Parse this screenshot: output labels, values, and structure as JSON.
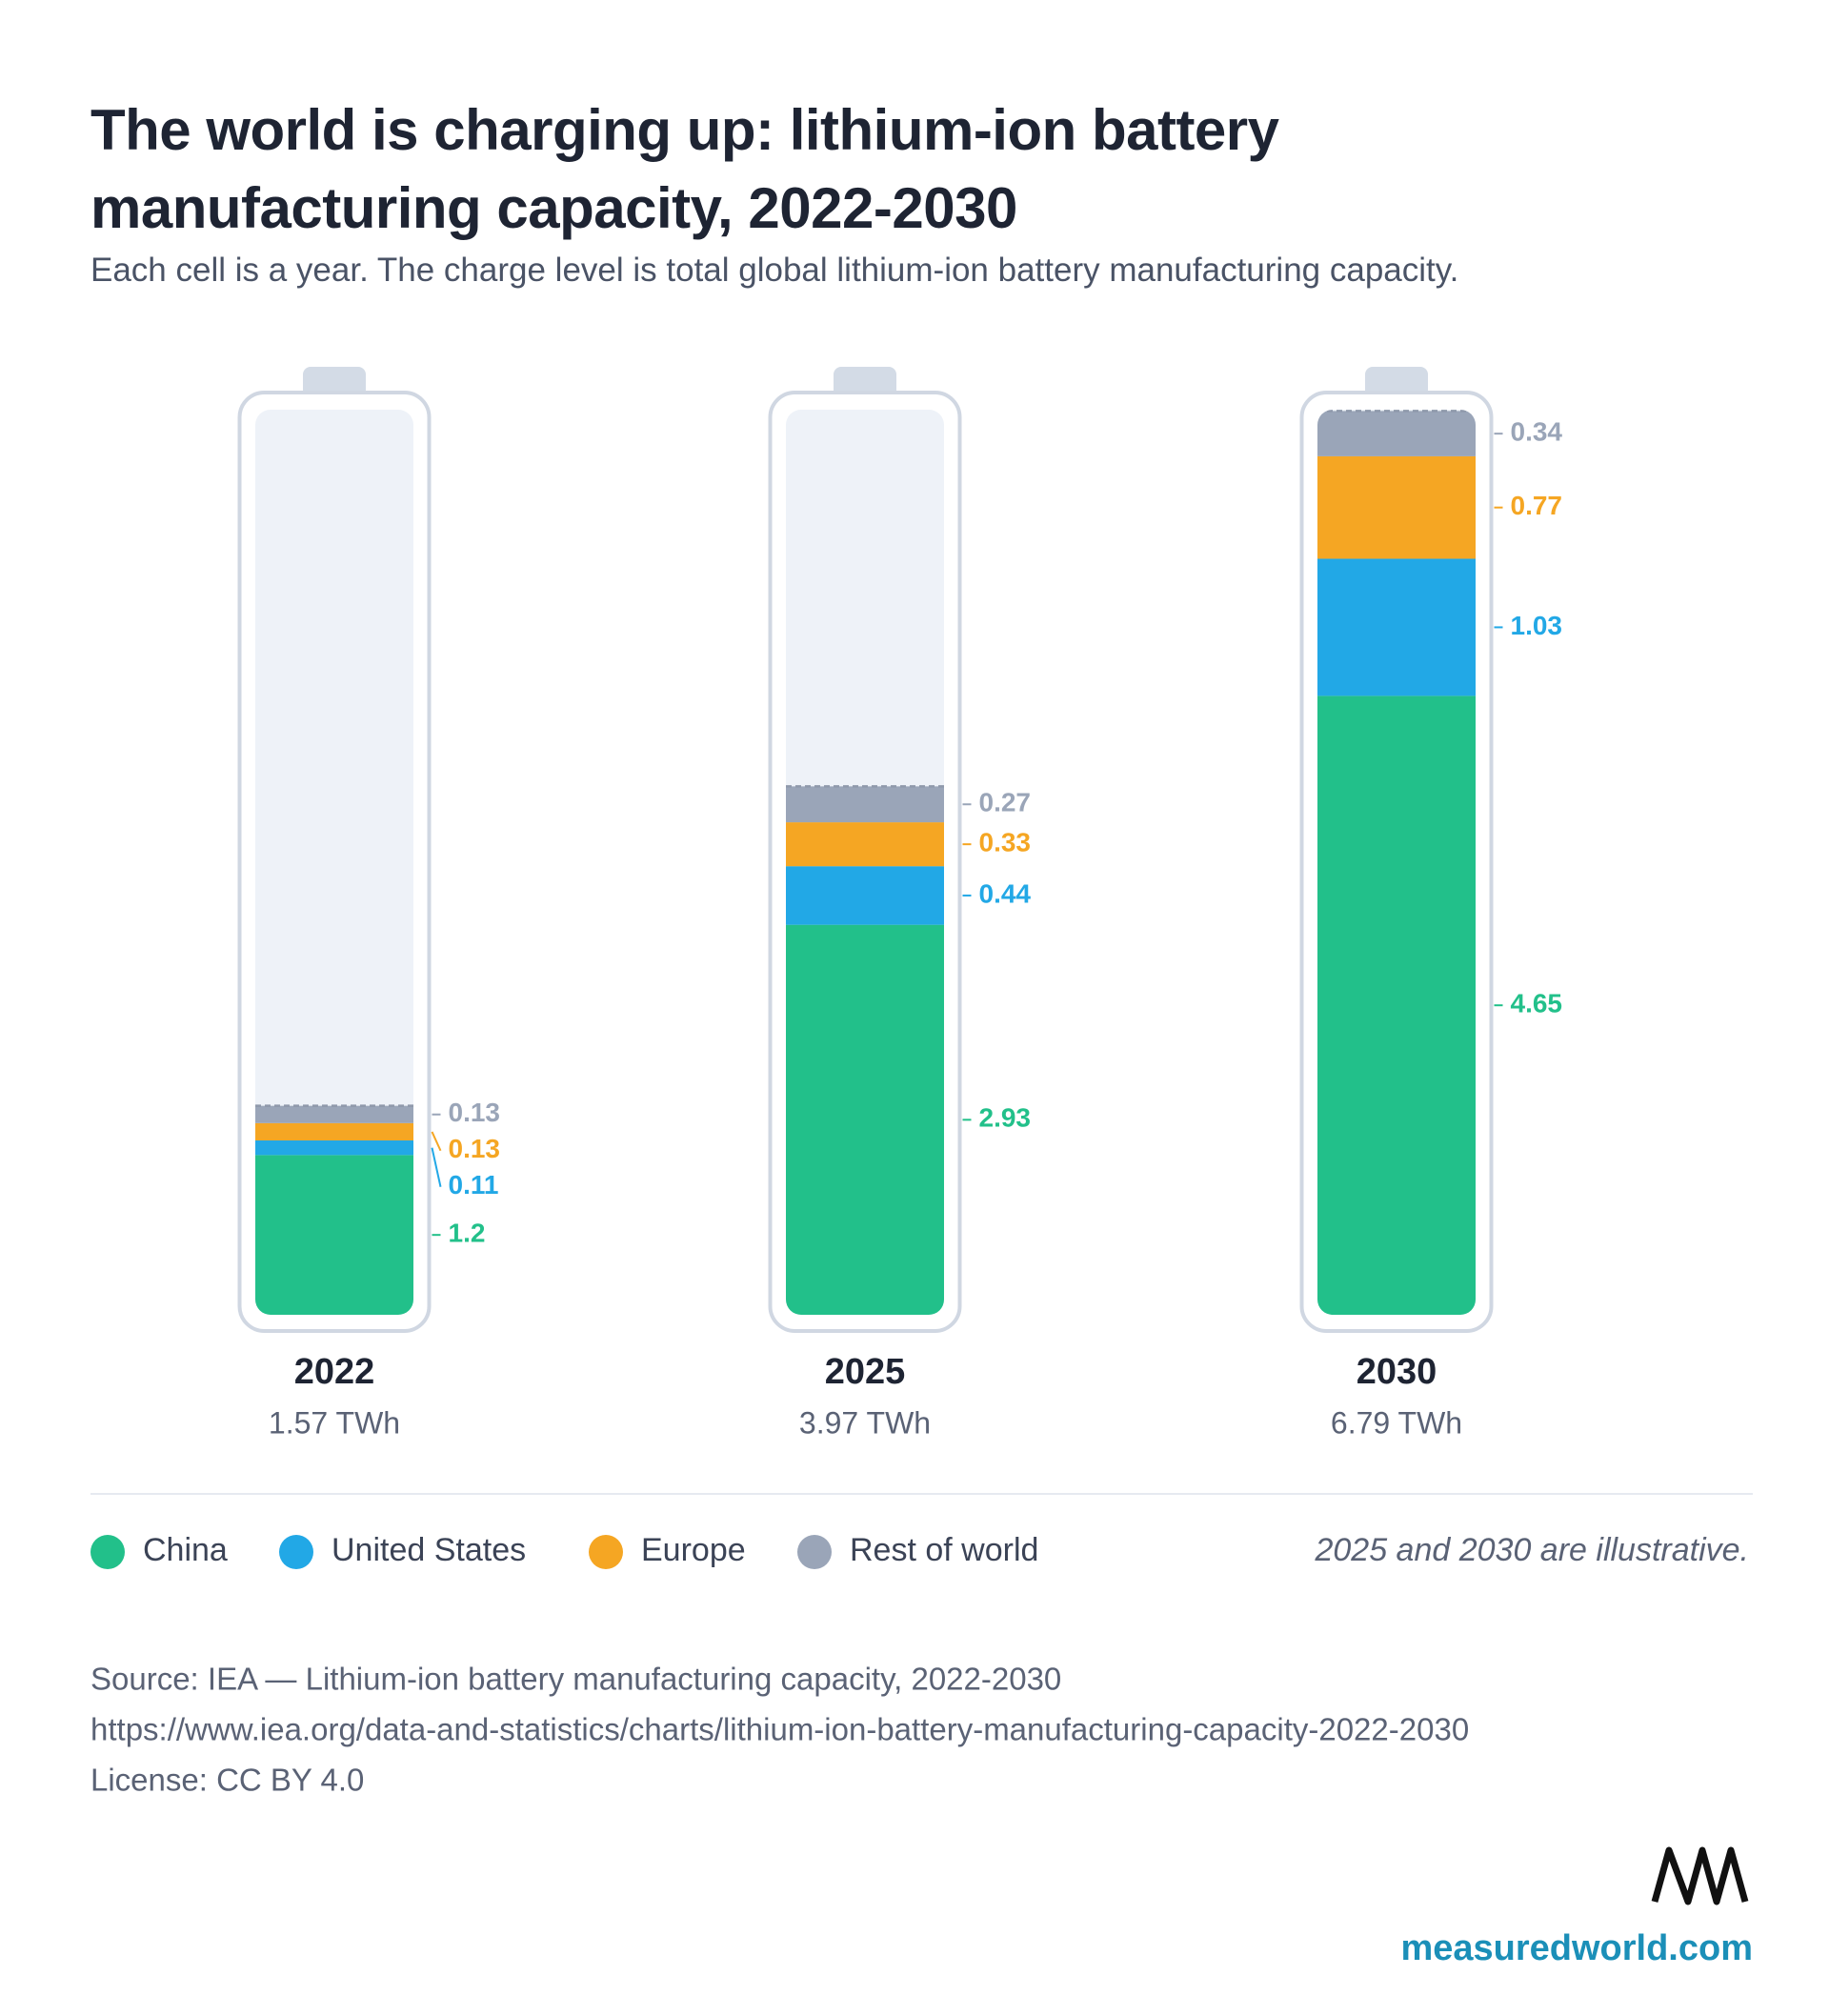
{
  "chart_data": {
    "type": "bar",
    "stacked": true,
    "title": "The world is charging up: lithium-ion battery manufacturing capacity, 2022-2030",
    "subtitle": "Each cell is a year. The charge level is total global lithium-ion battery manufacturing capacity.",
    "categories": [
      "2022",
      "2025",
      "2030"
    ],
    "series": [
      {
        "name": "China",
        "color": "#22c08a",
        "values": [
          1.2,
          2.93,
          4.65
        ]
      },
      {
        "name": "United States",
        "color": "#22a8e6",
        "values": [
          0.11,
          0.44,
          1.03
        ]
      },
      {
        "name": "Europe",
        "color": "#f5a623",
        "values": [
          0.13,
          0.33,
          0.77
        ]
      },
      {
        "name": "Rest of world",
        "color": "#9aa5b8",
        "values": [
          0.13,
          0.27,
          0.34
        ]
      }
    ],
    "totals": {
      "values": [
        1.57,
        3.97,
        6.79
      ],
      "value_labels": [
        "1.57 TWh",
        "3.97 TWh",
        "6.79 TWh"
      ]
    },
    "ylim": [
      0,
      6.8
    ],
    "note": "2025 and 2030 are illustrative.",
    "source": "Source: IEA — Lithium-ion battery manufacturing capacity, 2022-2030",
    "url": "https://www.iea.org/data-and-statistics/charts/lithium-ion-battery-manufacturing-capacity-2022-2030",
    "license": "License: CC BY 4.0",
    "brand": "measuredworld.com"
  }
}
